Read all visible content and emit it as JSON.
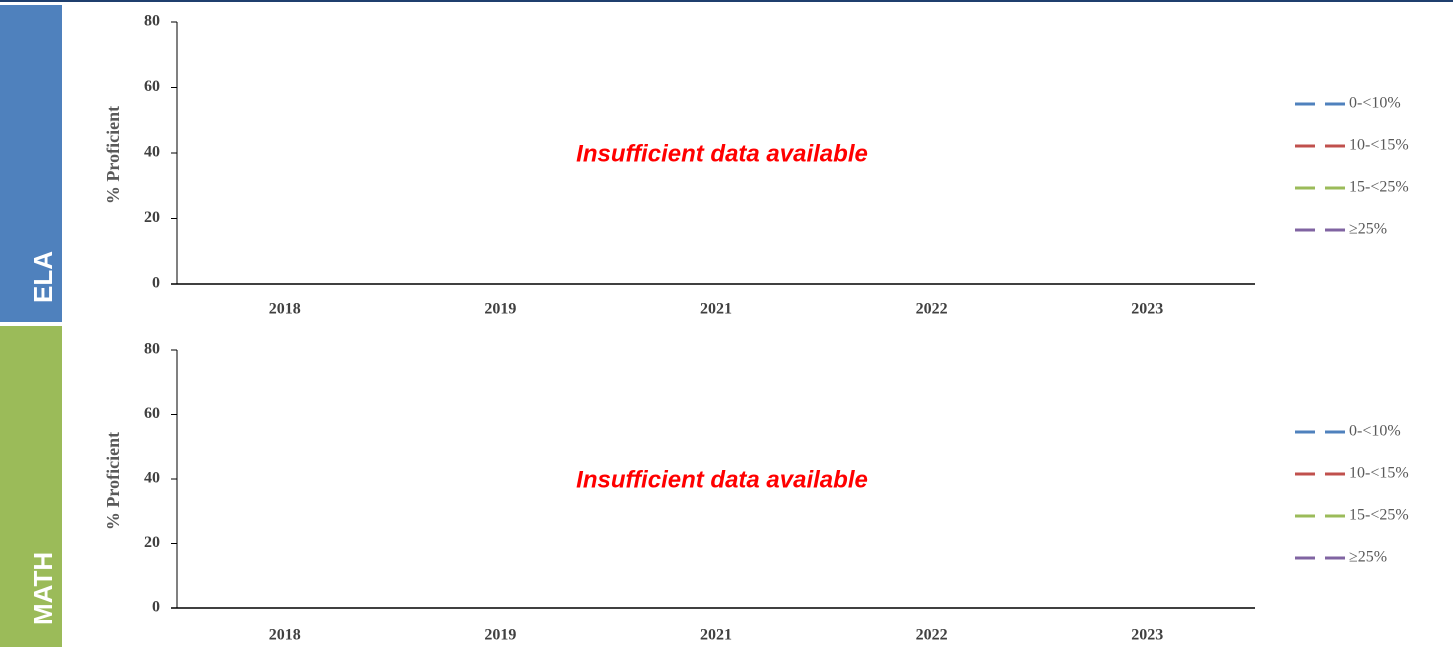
{
  "chart_data": [
    {
      "type": "line",
      "panel_label": "ELA",
      "panel_color": "#4f81bd",
      "ylabel": "% Proficient",
      "annotation": "Insufficient data available",
      "categories": [
        "2018",
        "2019",
        "2021",
        "2022",
        "2023"
      ],
      "series": [
        {
          "name": "0-<10%",
          "color": "#4f81bd",
          "values": [
            null,
            null,
            null,
            null,
            null
          ]
        },
        {
          "name": "10-<15%",
          "color": "#c0504d",
          "values": [
            null,
            null,
            null,
            null,
            null
          ]
        },
        {
          "name": "15-<25%",
          "color": "#9bbb59",
          "values": [
            null,
            null,
            null,
            null,
            null
          ]
        },
        {
          "name": "≥25%",
          "color": "#8064a2",
          "values": [
            null,
            null,
            null,
            null,
            null
          ]
        }
      ],
      "ylim": [
        0,
        80
      ],
      "yticks": [
        0,
        20,
        40,
        60,
        80
      ],
      "legend": "right"
    },
    {
      "type": "line",
      "panel_label": "MATH",
      "panel_color": "#9bbb59",
      "ylabel": "% Proficient",
      "annotation": "Insufficient data available",
      "categories": [
        "2018",
        "2019",
        "2021",
        "2022",
        "2023"
      ],
      "series": [
        {
          "name": "0-<10%",
          "color": "#4f81bd",
          "values": [
            null,
            null,
            null,
            null,
            null
          ]
        },
        {
          "name": "10-<15%",
          "color": "#c0504d",
          "values": [
            null,
            null,
            null,
            null,
            null
          ]
        },
        {
          "name": "15-<25%",
          "color": "#9bbb59",
          "values": [
            null,
            null,
            null,
            null,
            null
          ]
        },
        {
          "name": "≥25%",
          "color": "#8064a2",
          "values": [
            null,
            null,
            null,
            null,
            null
          ]
        }
      ],
      "ylim": [
        0,
        80
      ],
      "yticks": [
        0,
        20,
        40,
        60,
        80
      ],
      "legend": "right"
    }
  ]
}
